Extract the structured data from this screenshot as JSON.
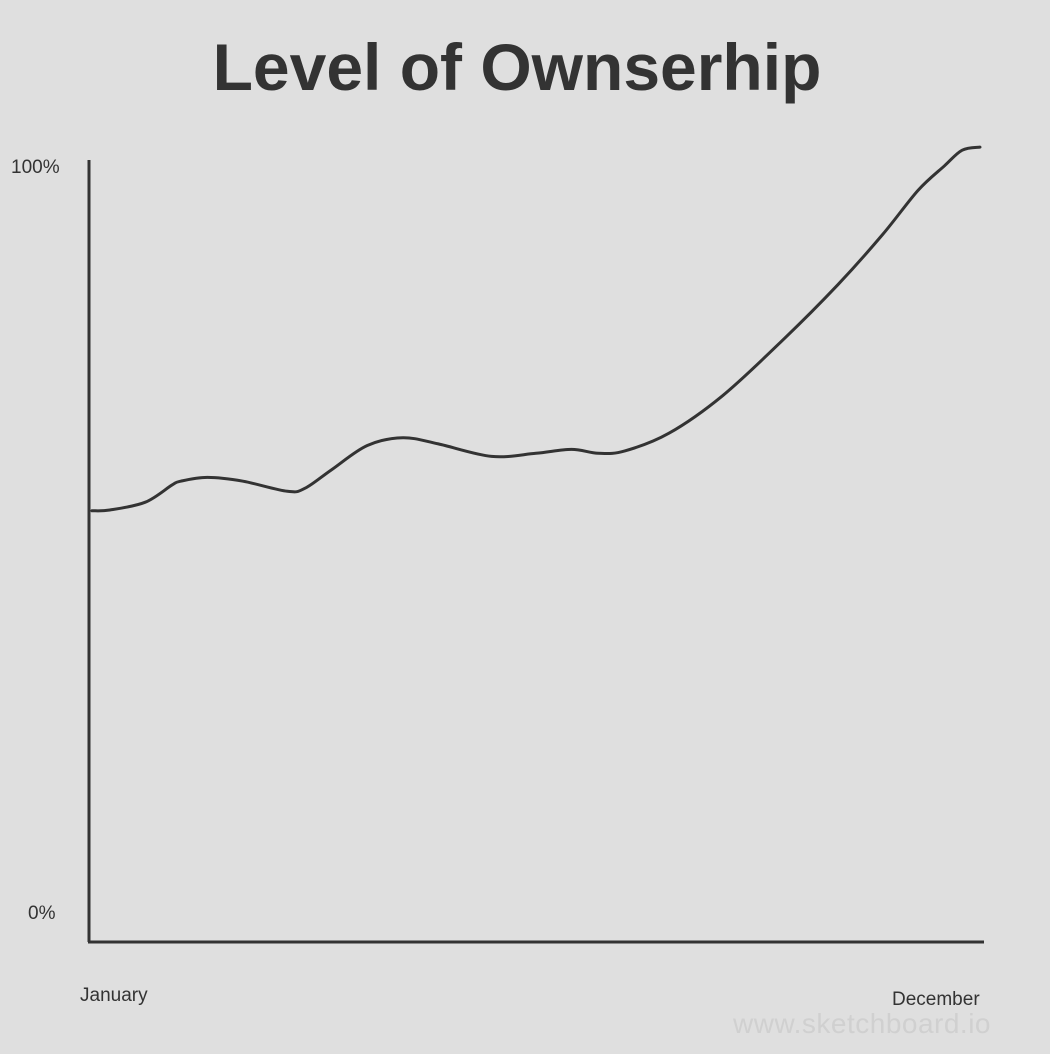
{
  "chart_data": {
    "type": "line",
    "title": "Level of Ownserhip",
    "x_tick_labels": [
      "January",
      "December"
    ],
    "y_tick_labels": [
      "0%",
      "100%"
    ],
    "ylim": [
      0,
      100
    ],
    "xlim": [
      0,
      1
    ],
    "grid": false,
    "legend": "none",
    "line_color": "#333333",
    "axis_color": "#333333",
    "background_color": "#dfdfdf",
    "series": [
      {
        "x": [
          0,
          0.02,
          0.06,
          0.09,
          0.1,
          0.13,
          0.17,
          0.22,
          0.24,
          0.27,
          0.31,
          0.35,
          0.39,
          0.45,
          0.5,
          0.54,
          0.57,
          0.6,
          0.65,
          0.71,
          0.78,
          0.84,
          0.89,
          0.93,
          0.96,
          0.98,
          1.0
        ],
        "y": [
          55.5,
          55.6,
          56.6,
          58.8,
          59.3,
          59.8,
          59.3,
          58.0,
          58.4,
          60.8,
          63.9,
          64.9,
          64.1,
          62.5,
          62.9,
          63.4,
          62.9,
          63.2,
          65.5,
          70.3,
          77.7,
          84.6,
          91.0,
          96.7,
          99.9,
          101.9,
          102.3
        ]
      }
    ]
  },
  "watermark": "www.sketchboard.io"
}
